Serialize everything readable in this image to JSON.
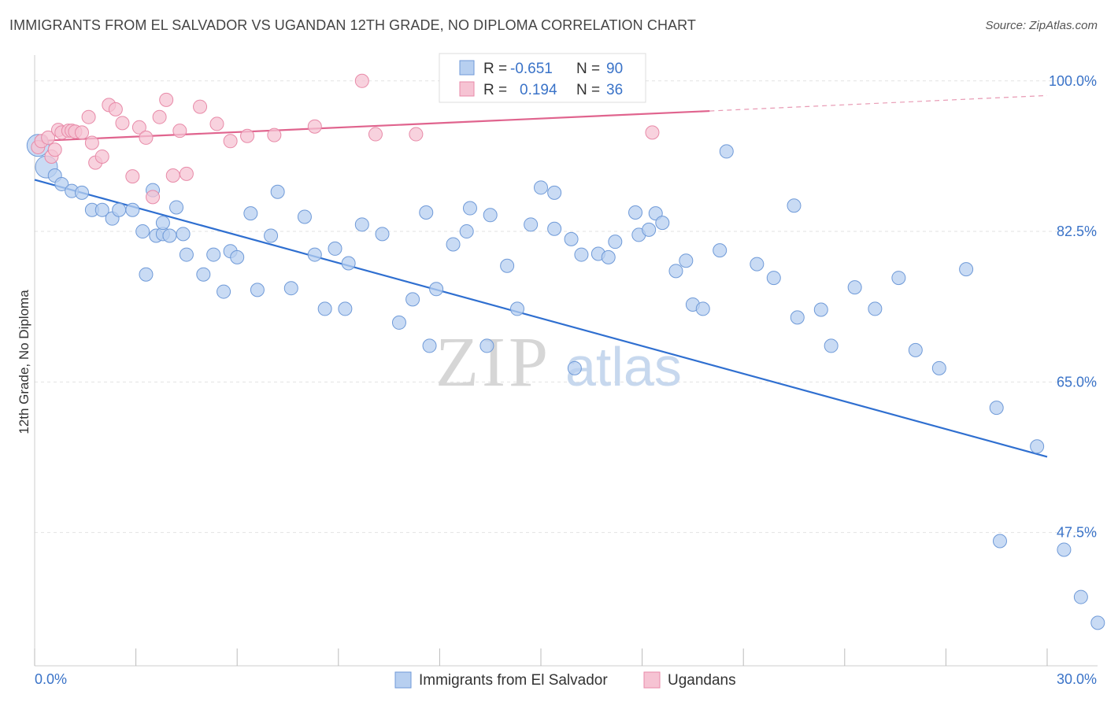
{
  "title": "IMMIGRANTS FROM EL SALVADOR VS UGANDAN 12TH GRADE, NO DIPLOMA CORRELATION CHART",
  "source": "Source: ZipAtlas.com",
  "watermark": {
    "zip": "ZIP",
    "atlas": "atlas"
  },
  "chart_data": {
    "type": "scatter",
    "xlabel": "",
    "ylabel": "12th Grade, No Diploma",
    "xlim": [
      0.0,
      30.0
    ],
    "ylim": [
      32.0,
      103.0
    ],
    "x_tick_labels": [
      "0.0%",
      "30.0%"
    ],
    "y_ticks": [
      47.5,
      65.0,
      82.5,
      100.0
    ],
    "y_tick_labels": [
      "47.5%",
      "65.0%",
      "82.5%",
      "100.0%"
    ],
    "grid": true,
    "legend_position": "top-center",
    "colors": {
      "blue": "#5b8fd9",
      "blue_fill": "#b7cff0",
      "pink": "#e86f97",
      "pink_fill": "#f6c3d3"
    },
    "stats": [
      {
        "r_label": "R =",
        "r": "-0.651",
        "n_label": "N =",
        "n": "90"
      },
      {
        "r_label": "R =",
        "r": "0.194",
        "n_label": "N =",
        "n": "36"
      }
    ],
    "series": [
      {
        "name": "Immigrants from El Salvador",
        "color": "#5b8fd9",
        "trend": {
          "x0": 0.0,
          "y0": 88.5,
          "x1": 30.0,
          "y1": 56.3
        },
        "points": [
          [
            0.1,
            92.5
          ],
          [
            0.35,
            90.0
          ],
          [
            0.6,
            89.0
          ],
          [
            0.8,
            88.0
          ],
          [
            1.1,
            87.2
          ],
          [
            1.4,
            87.0
          ],
          [
            1.7,
            85.0
          ],
          [
            2.0,
            85.0
          ],
          [
            2.3,
            84.0
          ],
          [
            2.5,
            85.0
          ],
          [
            2.9,
            85.0
          ],
          [
            3.2,
            82.5
          ],
          [
            3.5,
            87.3
          ],
          [
            3.6,
            82.0
          ],
          [
            3.8,
            82.2
          ],
          [
            4.0,
            82.0
          ],
          [
            3.3,
            77.5
          ],
          [
            3.8,
            83.5
          ],
          [
            4.2,
            85.3
          ],
          [
            4.4,
            82.2
          ],
          [
            4.5,
            79.8
          ],
          [
            5.0,
            77.5
          ],
          [
            5.3,
            79.8
          ],
          [
            5.6,
            75.5
          ],
          [
            5.8,
            80.2
          ],
          [
            6.0,
            79.5
          ],
          [
            6.4,
            84.6
          ],
          [
            6.6,
            75.7
          ],
          [
            7.0,
            82.0
          ],
          [
            7.2,
            87.1
          ],
          [
            7.6,
            75.9
          ],
          [
            8.0,
            84.2
          ],
          [
            8.3,
            79.8
          ],
          [
            8.6,
            73.5
          ],
          [
            8.9,
            80.5
          ],
          [
            9.2,
            73.5
          ],
          [
            9.3,
            78.8
          ],
          [
            9.7,
            83.3
          ],
          [
            10.3,
            82.2
          ],
          [
            10.8,
            71.9
          ],
          [
            11.2,
            74.6
          ],
          [
            11.6,
            84.7
          ],
          [
            11.9,
            75.8
          ],
          [
            11.7,
            69.2
          ],
          [
            12.4,
            81.0
          ],
          [
            12.9,
            85.2
          ],
          [
            12.8,
            82.5
          ],
          [
            13.5,
            84.4
          ],
          [
            13.4,
            69.2
          ],
          [
            14.0,
            78.5
          ],
          [
            14.3,
            73.5
          ],
          [
            14.7,
            83.3
          ],
          [
            15.0,
            87.6
          ],
          [
            15.4,
            87.0
          ],
          [
            15.4,
            82.8
          ],
          [
            15.9,
            81.6
          ],
          [
            16.2,
            79.8
          ],
          [
            16.0,
            66.6
          ],
          [
            16.7,
            79.9
          ],
          [
            17.0,
            79.5
          ],
          [
            17.2,
            81.3
          ],
          [
            17.8,
            84.7
          ],
          [
            17.9,
            82.1
          ],
          [
            18.2,
            82.7
          ],
          [
            18.4,
            84.6
          ],
          [
            18.6,
            83.5
          ],
          [
            19.0,
            77.9
          ],
          [
            19.3,
            79.1
          ],
          [
            19.5,
            74.0
          ],
          [
            19.8,
            73.5
          ],
          [
            20.3,
            80.3
          ],
          [
            20.5,
            91.8
          ],
          [
            21.4,
            78.7
          ],
          [
            21.9,
            77.1
          ],
          [
            22.5,
            85.5
          ],
          [
            22.6,
            72.5
          ],
          [
            23.3,
            73.4
          ],
          [
            23.6,
            69.2
          ],
          [
            24.3,
            76.0
          ],
          [
            24.9,
            73.5
          ],
          [
            25.6,
            77.1
          ],
          [
            26.1,
            68.7
          ],
          [
            26.8,
            66.6
          ],
          [
            27.6,
            78.1
          ],
          [
            28.5,
            62.0
          ],
          [
            29.7,
            57.5
          ],
          [
            28.6,
            46.5
          ],
          [
            30.5,
            45.5
          ],
          [
            31.0,
            40.0
          ],
          [
            31.5,
            37.0
          ]
        ]
      },
      {
        "name": "Ugandans",
        "color": "#e86f97",
        "trend": {
          "x0": 0.0,
          "y0": 93.0,
          "x1": 20.0,
          "y1": 96.5
        },
        "trend_dashed": {
          "x0": 20.0,
          "y0": 96.5,
          "x1": 30.0,
          "y1": 98.3
        },
        "points": [
          [
            0.1,
            92.3
          ],
          [
            0.2,
            93.0
          ],
          [
            0.4,
            93.4
          ],
          [
            0.5,
            91.2
          ],
          [
            0.6,
            92.0
          ],
          [
            0.7,
            94.3
          ],
          [
            0.8,
            94.0
          ],
          [
            1.0,
            94.2
          ],
          [
            1.1,
            94.2
          ],
          [
            1.2,
            94.1
          ],
          [
            1.4,
            94.0
          ],
          [
            1.6,
            95.8
          ],
          [
            1.7,
            92.8
          ],
          [
            1.8,
            90.5
          ],
          [
            2.0,
            91.2
          ],
          [
            2.2,
            97.2
          ],
          [
            2.4,
            96.7
          ],
          [
            2.6,
            95.1
          ],
          [
            2.9,
            88.9
          ],
          [
            3.1,
            94.6
          ],
          [
            3.3,
            93.4
          ],
          [
            3.5,
            86.5
          ],
          [
            3.7,
            95.8
          ],
          [
            3.9,
            97.8
          ],
          [
            4.3,
            94.2
          ],
          [
            4.5,
            89.2
          ],
          [
            4.9,
            97.0
          ],
          [
            5.4,
            95.0
          ],
          [
            5.8,
            93.0
          ],
          [
            6.3,
            93.6
          ],
          [
            7.1,
            93.7
          ],
          [
            8.3,
            94.7
          ],
          [
            9.7,
            100.0
          ],
          [
            10.1,
            93.8
          ],
          [
            11.3,
            93.8
          ],
          [
            18.3,
            94.0
          ]
        ]
      }
    ],
    "pink_extra": [
      [
        4.1,
        89.0
      ]
    ],
    "bottom_legend": [
      "Immigrants from El Salvador",
      "Ugandans"
    ]
  }
}
